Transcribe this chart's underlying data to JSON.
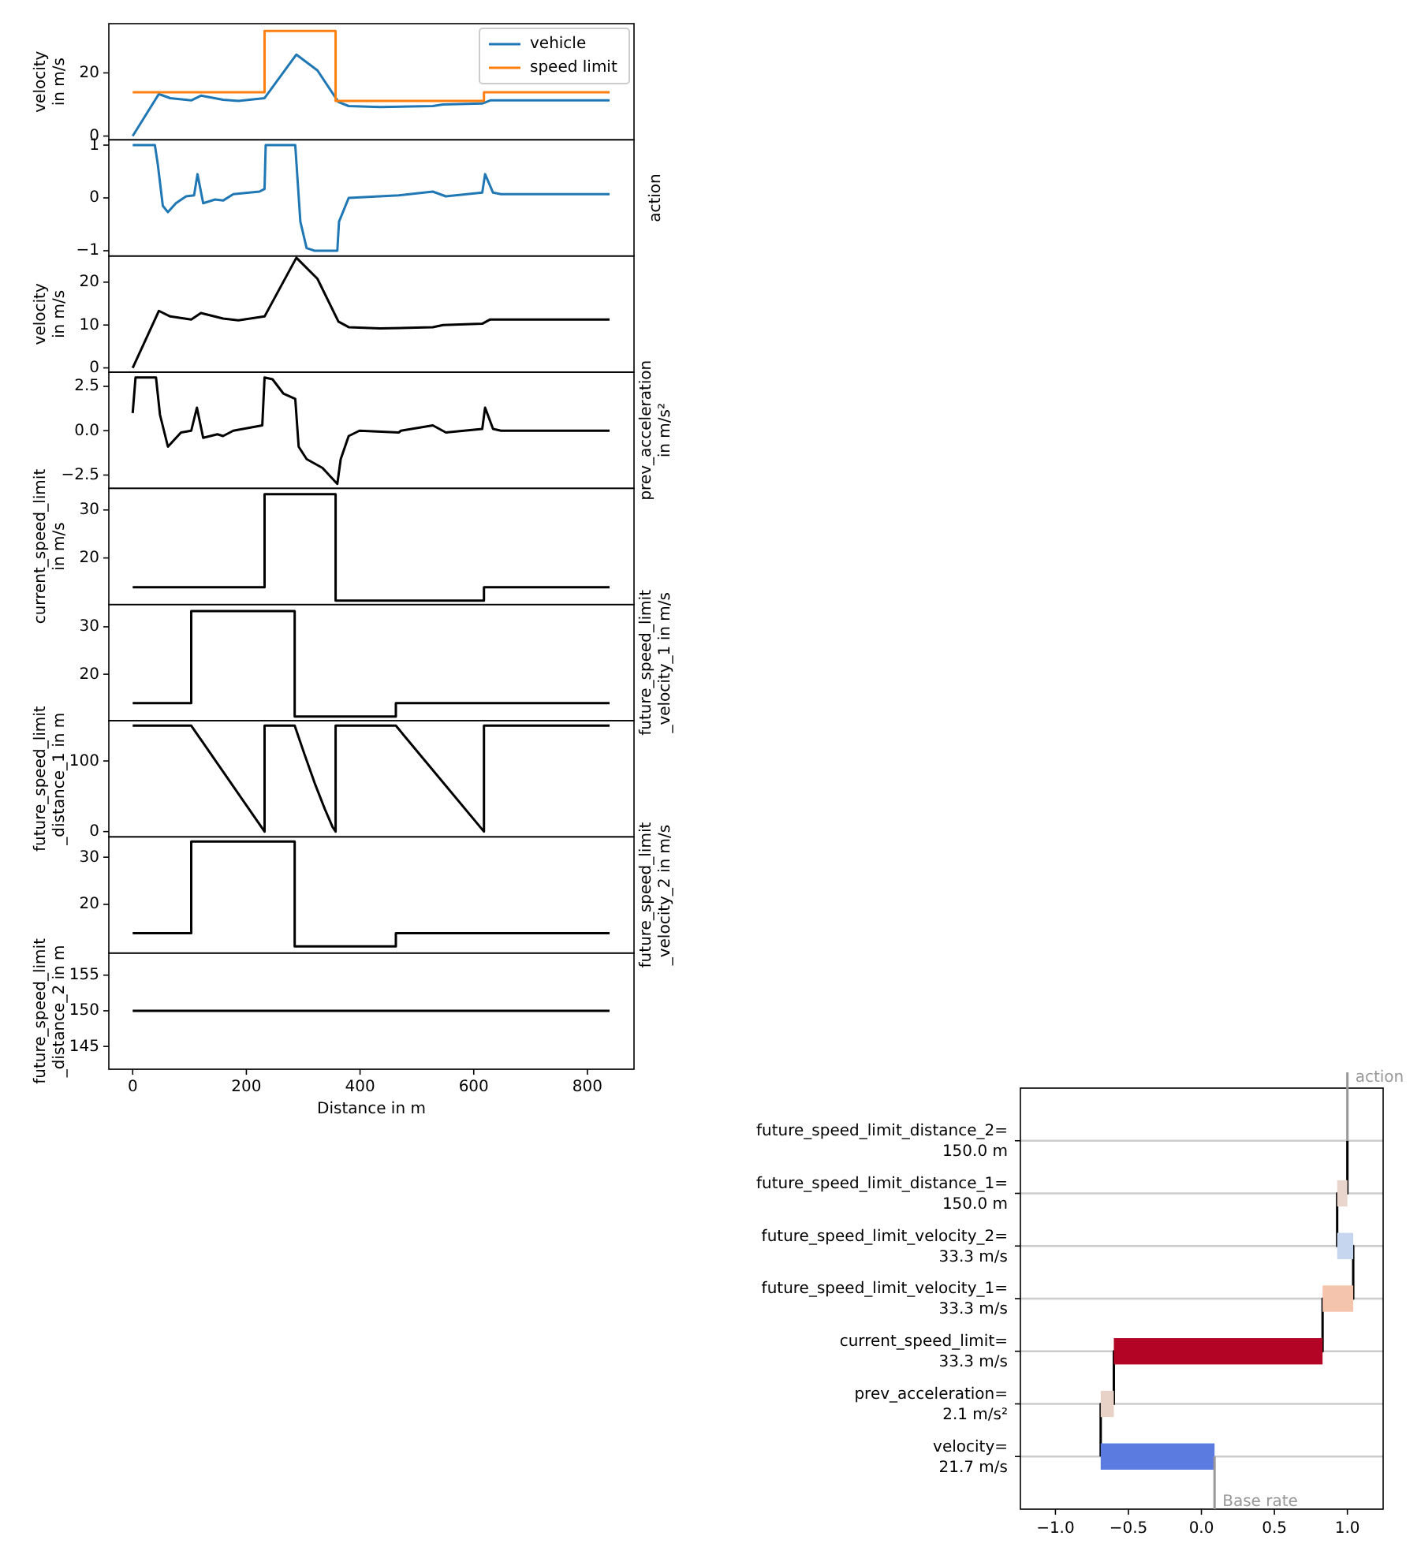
{
  "chart_data": [
    {
      "type": "line",
      "ylabel": "velocity\nin m/s",
      "xlim": [
        -42,
        882
      ],
      "ylim": [
        -1.2,
        35.6
      ],
      "yticks": [
        0,
        20
      ],
      "tick_labels": "y",
      "legend": "top right",
      "series": [
        {
          "name": "vehicle",
          "color": "#1f77b4",
          "x": [
            0,
            46,
            66,
            103,
            120,
            159,
            186,
            232,
            288,
            325,
            362,
            380,
            435,
            528,
            546,
            615,
            629,
            839
          ],
          "values": [
            0,
            13.3,
            12,
            11.3,
            12.8,
            11.5,
            11.1,
            12,
            25.8,
            20.8,
            10.8,
            9.5,
            9.2,
            9.5,
            10,
            10.3,
            11.3,
            11.3
          ]
        },
        {
          "name": "speed limit",
          "type": "step",
          "color": "#ff7f0e",
          "x": [
            0,
            232,
            357,
            618,
            839
          ],
          "values": [
            13.9,
            33.3,
            11.1,
            13.9,
            13.9
          ]
        }
      ]
    },
    {
      "type": "line",
      "y2label": "action",
      "xlim": [
        -42,
        882
      ],
      "ylim": [
        -1.1,
        1.1
      ],
      "yticks": [
        {
          "value": -1,
          "label": "−1"
        },
        0,
        1
      ],
      "tick_labels": "y",
      "series": [
        {
          "color": "#1f77b4",
          "x": [
            0,
            39,
            44,
            53,
            62,
            76,
            94,
            108,
            114,
            124,
            145,
            159,
            177,
            223,
            232,
            234,
            286,
            295,
            306,
            320,
            360,
            363,
            380,
            468,
            528,
            551,
            615,
            620,
            634,
            648,
            839
          ],
          "values": [
            1,
            1,
            0.65,
            -0.15,
            -0.27,
            -0.1,
            0.03,
            0.05,
            0.45,
            -0.1,
            -0.03,
            -0.05,
            0.07,
            0.12,
            0.17,
            1,
            1,
            -0.45,
            -0.95,
            -1,
            -1,
            -0.45,
            0,
            0.05,
            0.12,
            0.03,
            0.1,
            0.45,
            0.1,
            0.07,
            0.07
          ]
        }
      ]
    },
    {
      "type": "line",
      "ylabel": "velocity\nin m/s",
      "xlim": [
        -42,
        882
      ],
      "ylim": [
        -1,
        26.1
      ],
      "yticks": [
        0,
        10,
        20
      ],
      "tick_labels": "y",
      "series": [
        {
          "color": "#000000",
          "x": [
            0,
            46,
            66,
            103,
            120,
            159,
            186,
            232,
            288,
            325,
            362,
            380,
            435,
            528,
            546,
            615,
            629,
            839
          ],
          "values": [
            0,
            13.3,
            12,
            11.3,
            12.8,
            11.5,
            11.1,
            12,
            25.7,
            20.8,
            10.8,
            9.5,
            9.2,
            9.5,
            10,
            10.3,
            11.3,
            11.3
          ]
        }
      ]
    },
    {
      "type": "line",
      "y2label": "prev_acceleration\nin m/s²",
      "xlim": [
        -42,
        882
      ],
      "ylim": [
        -3.25,
        3.3
      ],
      "yticks": [
        {
          "value": -2.5,
          "label": "−2.5"
        },
        {
          "value": 0,
          "label": "0.0"
        },
        2.5
      ],
      "tick_labels": "y",
      "series": [
        {
          "color": "#000000",
          "x": [
            0,
            5,
            41,
            48,
            62,
            85,
            103,
            113,
            124,
            149,
            159,
            177,
            228,
            232,
            246,
            265,
            286,
            292,
            306,
            334,
            360,
            366,
            380,
            399,
            468,
            472,
            528,
            551,
            615,
            620,
            634,
            648,
            839
          ],
          "values": [
            1,
            3,
            3,
            0.9,
            -0.9,
            -0.1,
            0,
            1.3,
            -0.4,
            -0.2,
            -0.3,
            0,
            0.3,
            3,
            2.9,
            2.1,
            1.8,
            -0.9,
            -1.6,
            -2.1,
            -3,
            -1.6,
            -0.3,
            0,
            -0.1,
            0,
            0.3,
            -0.1,
            0.1,
            1.3,
            0.1,
            0,
            0
          ]
        }
      ]
    },
    {
      "type": "step",
      "ylabel": "current_speed_limit\nin m/s",
      "xlim": [
        -42,
        882
      ],
      "ylim": [
        10.3,
        34.5
      ],
      "yticks": [
        20,
        30
      ],
      "tick_labels": "y",
      "series": [
        {
          "color": "#000000",
          "x": [
            0,
            232,
            357,
            618,
            839
          ],
          "values": [
            13.9,
            33.3,
            11.1,
            13.9,
            13.9
          ]
        }
      ]
    },
    {
      "type": "step",
      "y2label": "future_speed_limit\n_velocity_1 in m/s",
      "xlim": [
        -42,
        882
      ],
      "ylim": [
        10.2,
        34.7
      ],
      "yticks": [
        20,
        30
      ],
      "tick_labels": "y",
      "series": [
        {
          "color": "#000000",
          "x": [
            0,
            103,
            285,
            463,
            839
          ],
          "values": [
            13.9,
            33.3,
            11.1,
            13.9,
            13.9
          ]
        }
      ]
    },
    {
      "type": "line",
      "ylabel": "future_speed_limit\n_distance_1 in m",
      "xlim": [
        -42,
        882
      ],
      "ylim": [
        -7.5,
        157
      ],
      "yticks": [
        0,
        100
      ],
      "tick_labels": "y",
      "series": [
        {
          "color": "#000000",
          "x": [
            0,
            103,
            232,
            232,
            285,
            302,
            320,
            338,
            352,
            357,
            357,
            463,
            618,
            618,
            839
          ],
          "values": [
            150,
            150,
            0,
            150,
            150,
            110,
            69,
            32,
            6,
            0,
            150,
            150,
            0,
            150,
            150
          ]
        }
      ]
    },
    {
      "type": "step",
      "y2label": "future_speed_limit\n_velocity_2 in m/s",
      "xlim": [
        -42,
        882
      ],
      "ylim": [
        9.7,
        34.3
      ],
      "yticks": [
        20,
        30
      ],
      "tick_labels": "y",
      "series": [
        {
          "color": "#000000",
          "x": [
            0,
            103,
            285,
            463,
            839
          ],
          "values": [
            13.9,
            33.3,
            11.1,
            13.9,
            13.9
          ]
        }
      ]
    },
    {
      "type": "line",
      "ylabel": "future_speed_limit\n_distance_2 in m",
      "xlabel": "Distance in m",
      "xlim": [
        -42,
        882
      ],
      "ylim": [
        141.8,
        158.1
      ],
      "yticks": [
        145,
        150,
        155
      ],
      "xticks": [
        0,
        200,
        400,
        600,
        800
      ],
      "series": [
        {
          "color": "#000000",
          "x": [
            0,
            839
          ],
          "values": [
            150,
            150
          ]
        }
      ]
    },
    {
      "type": "bar",
      "orientation": "horizontal",
      "grid": "y",
      "xlim": [
        -1.24,
        1.245
      ],
      "xticks": [
        {
          "value": -1,
          "label": "−1.0"
        },
        {
          "value": -0.5,
          "label": "−0.5"
        },
        {
          "value": 0,
          "label": "0.0"
        },
        {
          "value": 0.5,
          "label": "0.5"
        },
        {
          "value": 1,
          "label": "1.0"
        }
      ],
      "categories": [
        "future_speed_limit_distance_2=\n150.0 m",
        "future_speed_limit_distance_1=\n150.0 m",
        "future_speed_limit_velocity_2=\n33.3 m/s",
        "future_speed_limit_velocity_1=\n33.3 m/s",
        "current_speed_limit=\n33.3 m/s",
        "prev_acceleration=\n2.1 m/s²",
        "velocity=\n21.7 m/s"
      ],
      "base": [
        null,
        0.93,
        1.04,
        0.83,
        -0.6,
        -0.69,
        0.09
      ],
      "values": [
        null,
        0.07,
        -0.11,
        0.21,
        1.43,
        0.09,
        -0.78
      ],
      "series": [
        {
          "type": "step",
          "color": "#000000",
          "values": [
            1.0,
            1.0,
            0.93,
            1.04,
            0.83,
            -0.6,
            -0.69
          ]
        }
      ],
      "colors": [
        null,
        "#ead5cc",
        "#c6d6ee",
        "#f4c4ac",
        "#b40426",
        "#e8d2c8",
        "#5b7be0"
      ],
      "ref_lines": [
        {
          "axis": "x",
          "value": 0.09,
          "label": "Base rate",
          "color": "#999999"
        },
        {
          "axis": "x",
          "value": 1.0,
          "label": "action",
          "color": "#999999"
        }
      ]
    }
  ]
}
